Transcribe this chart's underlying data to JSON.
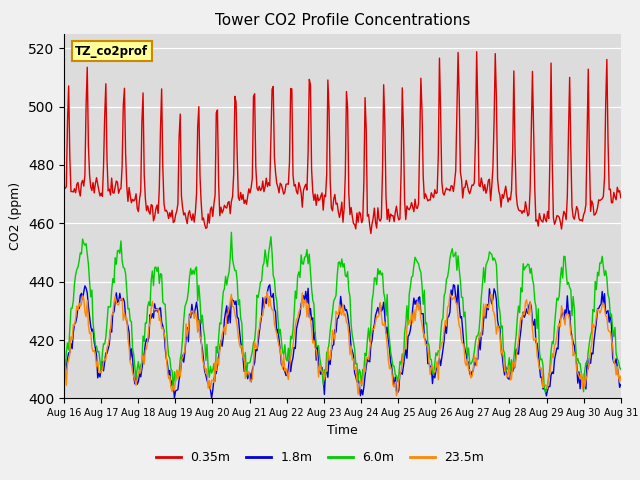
{
  "title": "Tower CO2 Profile Concentrations",
  "xlabel": "Time",
  "ylabel": "CO2 (ppm)",
  "annotation": "TZ_co2prof",
  "ylim": [
    400,
    525
  ],
  "yticks": [
    400,
    420,
    440,
    460,
    480,
    500,
    520
  ],
  "plot_bg_color": "#dcdcdc",
  "fig_bg_color": "#f0f0f0",
  "series": {
    "0.35m": {
      "color": "#dd0000",
      "lw": 1.0
    },
    "1.8m": {
      "color": "#0000dd",
      "lw": 1.0
    },
    "6.0m": {
      "color": "#00cc00",
      "lw": 1.0
    },
    "23.5m": {
      "color": "#ff8800",
      "lw": 1.0
    }
  },
  "legend_labels": [
    "0.35m",
    "1.8m",
    "6.0m",
    "23.5m"
  ],
  "legend_colors": [
    "#dd0000",
    "#0000dd",
    "#00cc00",
    "#ff8800"
  ],
  "xtick_labels": [
    "Aug 16",
    "Aug 17",
    "Aug 18",
    "Aug 19",
    "Aug 20",
    "Aug 21",
    "Aug 22",
    "Aug 23",
    "Aug 24",
    "Aug 25",
    "Aug 26",
    "Aug 27",
    "Aug 28",
    "Aug 29",
    "Aug 30",
    "Aug 31"
  ]
}
